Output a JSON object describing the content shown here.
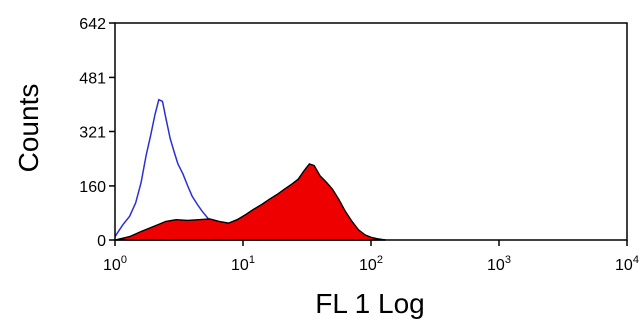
{
  "chart_data": {
    "type": "area",
    "title": "",
    "xlabel": "FL 1 Log",
    "ylabel": "Counts",
    "x_scale": "log",
    "xlim": [
      1,
      10000
    ],
    "ylim": [
      0,
      642
    ],
    "x_ticks": [
      {
        "value": 1,
        "base": "10",
        "exp": "0"
      },
      {
        "value": 10,
        "base": "10",
        "exp": "1"
      },
      {
        "value": 100,
        "base": "10",
        "exp": "2"
      },
      {
        "value": 1000,
        "base": "10",
        "exp": "3"
      },
      {
        "value": 10000,
        "base": "10",
        "exp": "4"
      }
    ],
    "y_ticks": [
      {
        "value": 0,
        "label": "0"
      },
      {
        "value": 160,
        "label": "160"
      },
      {
        "value": 321,
        "label": "321"
      },
      {
        "value": 481,
        "label": "481"
      },
      {
        "value": 642,
        "label": "642"
      }
    ],
    "grid": false,
    "series": [
      {
        "style": "outline",
        "color": "#2a2fd6",
        "x": [
          1.0,
          1.15,
          1.3,
          1.45,
          1.6,
          1.75,
          1.9,
          2.05,
          2.2,
          2.35,
          2.5,
          2.7,
          2.9,
          3.1,
          3.4,
          3.7,
          4.0,
          4.4,
          4.8,
          5.3,
          5.8,
          6.4,
          7.0,
          7.8,
          8.6,
          9.5,
          10.5,
          11.5,
          13.0
        ],
        "y": [
          10,
          45,
          70,
          110,
          170,
          250,
          310,
          370,
          415,
          410,
          360,
          300,
          260,
          225,
          195,
          160,
          130,
          105,
          85,
          65,
          50,
          40,
          30,
          20,
          14,
          8,
          5,
          2,
          0
        ]
      },
      {
        "style": "filled",
        "color": "#ee0000",
        "x": [
          1.0,
          1.3,
          1.6,
          2.0,
          2.5,
          3.0,
          3.7,
          4.5,
          5.5,
          6.5,
          7.7,
          9.0,
          10.5,
          12.0,
          14.0,
          16.0,
          18.5,
          21.0,
          24.0,
          27.0,
          30.0,
          33.0,
          36.0,
          40.0,
          45.0,
          50.0,
          56.0,
          63.0,
          71.0,
          80.0,
          90.0,
          100.0,
          115.0,
          130.0
        ],
        "y": [
          0,
          10,
          25,
          40,
          55,
          60,
          58,
          60,
          62,
          55,
          50,
          60,
          75,
          90,
          105,
          120,
          135,
          150,
          165,
          180,
          205,
          225,
          220,
          190,
          170,
          150,
          120,
          85,
          55,
          30,
          15,
          8,
          3,
          0
        ]
      }
    ]
  }
}
